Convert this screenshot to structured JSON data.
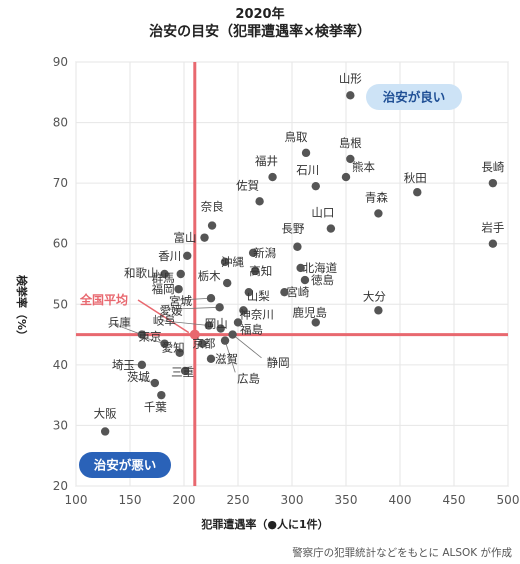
{
  "chart_data": {
    "type": "scatter",
    "year": "2020年",
    "title": "治安の目安（犯罪遭遇率×検挙率）",
    "xlabel": "犯罪遭遇率（●人に1件）",
    "ylabel": "検挙率（%）",
    "xlim": [
      100,
      500
    ],
    "ylim": [
      20,
      90
    ],
    "xticks": [
      "100",
      "150",
      "200",
      "250",
      "300",
      "350",
      "400",
      "450",
      "500"
    ],
    "yticks": [
      "20",
      "30",
      "40",
      "50",
      "60",
      "70",
      "80",
      "90"
    ],
    "national_average": {
      "label": "全国平均",
      "x": 210,
      "y": 45
    },
    "badges": {
      "good": "治安が良い",
      "bad": "治安が悪い"
    },
    "source": "警察庁の犯罪統計などをもとに ALSOK が作成",
    "colors": {
      "point": "#555555",
      "avg_line": "#e8686f",
      "good_badge": "#cde3f6",
      "bad_badge": "#2a62b8"
    },
    "points": [
      {
        "name": "山形",
        "x": 354,
        "y": 84.5
      },
      {
        "name": "鳥取",
        "x": 313,
        "y": 75
      },
      {
        "name": "島根",
        "x": 354,
        "y": 74
      },
      {
        "name": "福井",
        "x": 282,
        "y": 71
      },
      {
        "name": "石川",
        "x": 322,
        "y": 69.5
      },
      {
        "name": "熊本",
        "x": 350,
        "y": 71
      },
      {
        "name": "佐賀",
        "x": 270,
        "y": 67
      },
      {
        "name": "秋田",
        "x": 416,
        "y": 68.5
      },
      {
        "name": "長崎",
        "x": 486,
        "y": 70
      },
      {
        "name": "青森",
        "x": 380,
        "y": 65
      },
      {
        "name": "山口",
        "x": 336,
        "y": 62.5
      },
      {
        "name": "岩手",
        "x": 486,
        "y": 60
      },
      {
        "name": "奈良",
        "x": 226,
        "y": 63
      },
      {
        "name": "富山",
        "x": 219,
        "y": 61
      },
      {
        "name": "沖縄",
        "x": 238,
        "y": 57
      },
      {
        "name": "新潟",
        "x": 264,
        "y": 58.5
      },
      {
        "name": "長野",
        "x": 305,
        "y": 59.5
      },
      {
        "name": "香川",
        "x": 203,
        "y": 58
      },
      {
        "name": "和歌山",
        "x": 182,
        "y": 55
      },
      {
        "name": "群馬",
        "x": 197,
        "y": 55
      },
      {
        "name": "北海道",
        "x": 308,
        "y": 56
      },
      {
        "name": "高知",
        "x": 266,
        "y": 55.5
      },
      {
        "name": "福岡",
        "x": 195,
        "y": 52.5
      },
      {
        "name": "徳島",
        "x": 312,
        "y": 54
      },
      {
        "name": "栃木",
        "x": 240,
        "y": 53.5
      },
      {
        "name": "宮崎",
        "x": 293,
        "y": 52
      },
      {
        "name": "宮城",
        "x": 225,
        "y": 51
      },
      {
        "name": "大分",
        "x": 380,
        "y": 49
      },
      {
        "name": "山梨",
        "x": 260,
        "y": 52
      },
      {
        "name": "愛媛",
        "x": 233,
        "y": 49.5
      },
      {
        "name": "鹿児島",
        "x": 322,
        "y": 47
      },
      {
        "name": "神奈川",
        "x": 255,
        "y": 49
      },
      {
        "name": "兵庫",
        "x": 161,
        "y": 45
      },
      {
        "name": "岐阜",
        "x": 223,
        "y": 46.5
      },
      {
        "name": "岡山",
        "x": 234,
        "y": 46
      },
      {
        "name": "福島",
        "x": 250,
        "y": 47
      },
      {
        "name": "京都",
        "x": 217,
        "y": 43.5
      },
      {
        "name": "東京",
        "x": 182,
        "y": 43.5
      },
      {
        "name": "愛知",
        "x": 196,
        "y": 42
      },
      {
        "name": "滋賀",
        "x": 225,
        "y": 41
      },
      {
        "name": "静岡",
        "x": 245,
        "y": 45
      },
      {
        "name": "埼玉",
        "x": 161,
        "y": 40
      },
      {
        "name": "三重",
        "x": 201,
        "y": 39
      },
      {
        "name": "茨城",
        "x": 173,
        "y": 37
      },
      {
        "name": "広島",
        "x": 238,
        "y": 44
      },
      {
        "name": "千葉",
        "x": 179,
        "y": 35
      },
      {
        "name": "大阪",
        "x": 127,
        "y": 29
      }
    ]
  }
}
